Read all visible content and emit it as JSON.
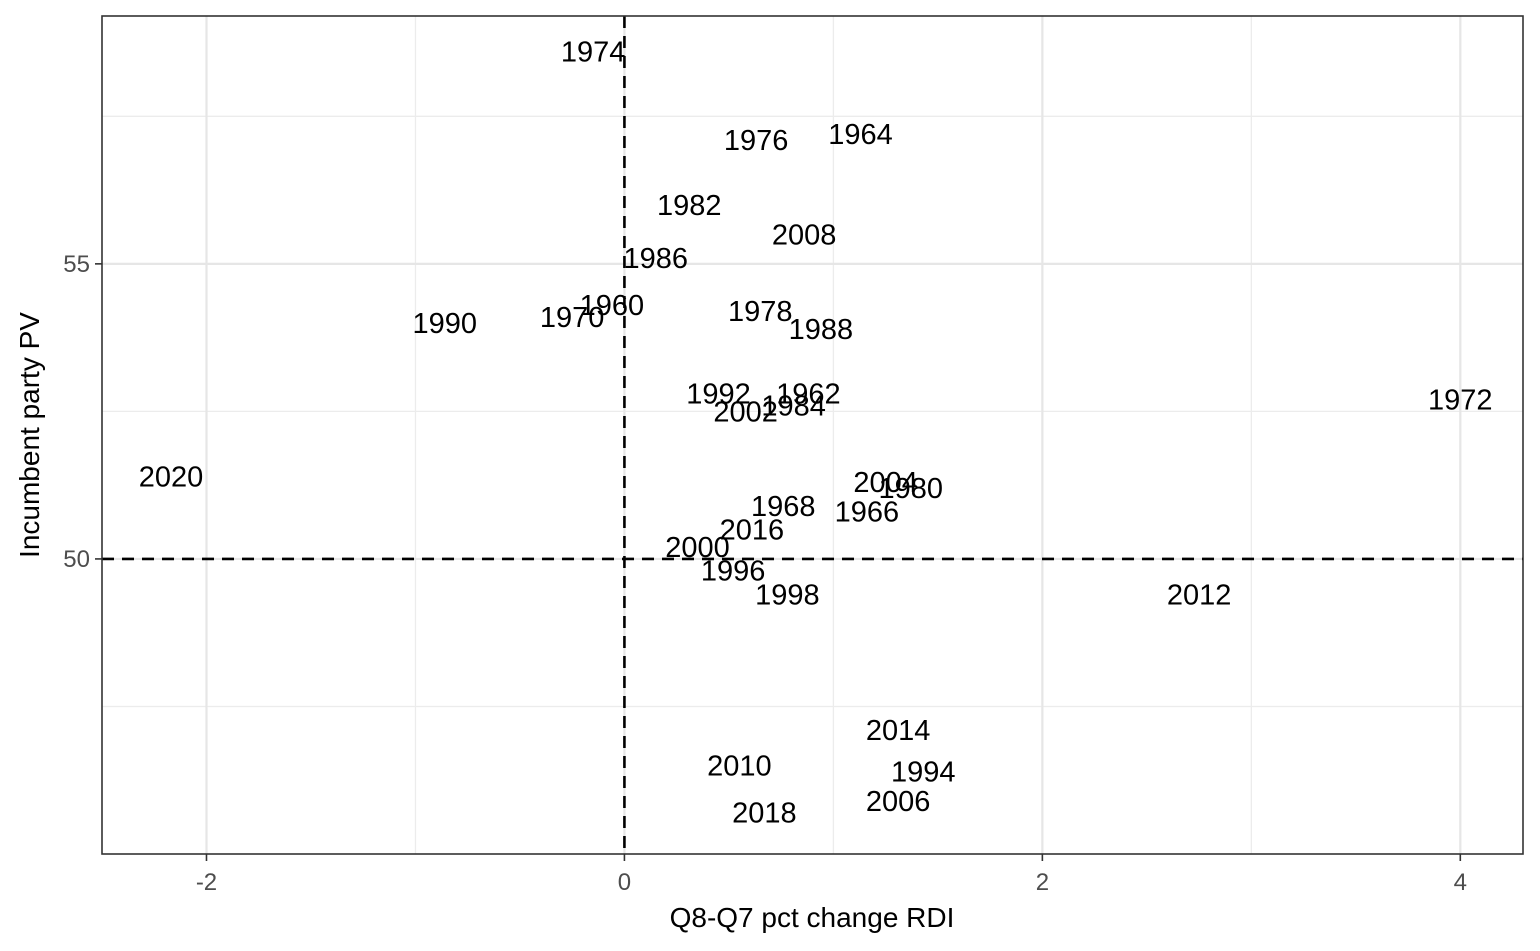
{
  "chart_data": {
    "type": "scatter",
    "title": "",
    "xlabel": "Q8-Q7 pct change RDI",
    "ylabel": "Incumbent party PV",
    "xlim": [
      -2.5,
      4.3
    ],
    "ylim": [
      45.0,
      59.2
    ],
    "x_ticks": [
      {
        "value": -2,
        "label": "-2"
      },
      {
        "value": 0,
        "label": "0"
      },
      {
        "value": 2,
        "label": "2"
      },
      {
        "value": 4,
        "label": "4"
      }
    ],
    "y_ticks": [
      {
        "value": 50,
        "label": "50"
      },
      {
        "value": 55,
        "label": "55"
      }
    ],
    "x_minor": [
      -1,
      1,
      3
    ],
    "y_minor": [
      47.5,
      52.5,
      57.5
    ],
    "reference_lines": {
      "vertical_x": 0,
      "horizontal_y": 50,
      "style": "dashed"
    },
    "grid": true,
    "theme": "black-and-white",
    "points": [
      {
        "label": "1974",
        "x": -0.15,
        "y": 58.6
      },
      {
        "label": "1976",
        "x": 0.63,
        "y": 57.1
      },
      {
        "label": "1964",
        "x": 1.13,
        "y": 57.2
      },
      {
        "label": "1982",
        "x": 0.31,
        "y": 56.0
      },
      {
        "label": "2008",
        "x": 0.86,
        "y": 55.5
      },
      {
        "label": "1986",
        "x": 0.15,
        "y": 55.1
      },
      {
        "label": "1960",
        "x": -0.06,
        "y": 54.3
      },
      {
        "label": "1970",
        "x": -0.25,
        "y": 54.1
      },
      {
        "label": "1990",
        "x": -0.86,
        "y": 54.0
      },
      {
        "label": "1978",
        "x": 0.65,
        "y": 54.2
      },
      {
        "label": "1988",
        "x": 0.94,
        "y": 53.9
      },
      {
        "label": "1992",
        "x": 0.45,
        "y": 52.8
      },
      {
        "label": "1962",
        "x": 0.88,
        "y": 52.8
      },
      {
        "label": "1984",
        "x": 0.81,
        "y": 52.6
      },
      {
        "label": "2002",
        "x": 0.58,
        "y": 52.5
      },
      {
        "label": "1972",
        "x": 4.0,
        "y": 52.7
      },
      {
        "label": "2020",
        "x": -2.17,
        "y": 51.4
      },
      {
        "label": "2004",
        "x": 1.25,
        "y": 51.3
      },
      {
        "label": "1980",
        "x": 1.37,
        "y": 51.2
      },
      {
        "label": "1968",
        "x": 0.76,
        "y": 50.9
      },
      {
        "label": "1966",
        "x": 1.16,
        "y": 50.8
      },
      {
        "label": "2016",
        "x": 0.61,
        "y": 50.5
      },
      {
        "label": "2000",
        "x": 0.35,
        "y": 50.2
      },
      {
        "label": "1996",
        "x": 0.52,
        "y": 49.8
      },
      {
        "label": "1998",
        "x": 0.78,
        "y": 49.4
      },
      {
        "label": "2012",
        "x": 2.75,
        "y": 49.4
      },
      {
        "label": "2014",
        "x": 1.31,
        "y": 47.1
      },
      {
        "label": "2010",
        "x": 0.55,
        "y": 46.5
      },
      {
        "label": "1994",
        "x": 1.43,
        "y": 46.4
      },
      {
        "label": "2006",
        "x": 1.31,
        "y": 45.9
      },
      {
        "label": "2018",
        "x": 0.67,
        "y": 45.7
      }
    ]
  }
}
